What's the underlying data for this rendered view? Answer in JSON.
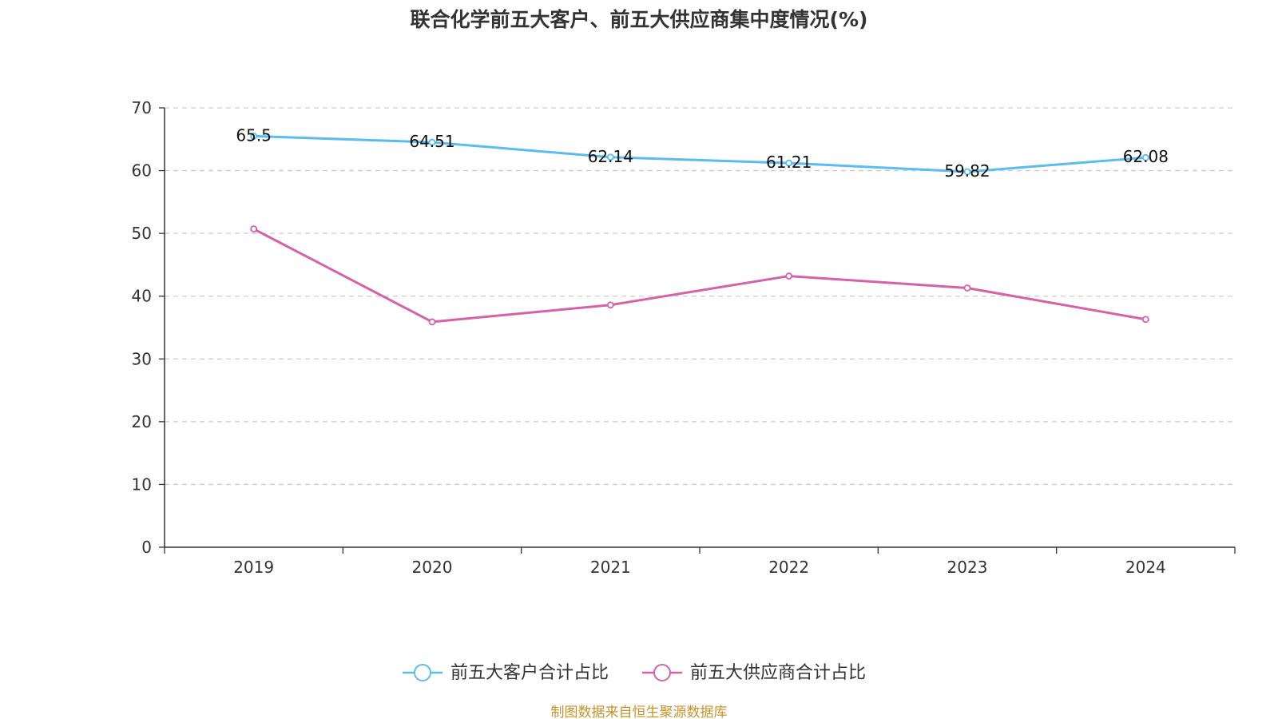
{
  "chart_data": {
    "type": "line",
    "title": "联合化学前五大客户、前五大供应商集中度情况(%)",
    "categories": [
      "2019",
      "2020",
      "2021",
      "2022",
      "2023",
      "2024"
    ],
    "ylim": [
      0,
      70
    ],
    "yticks": [
      0,
      10,
      20,
      30,
      40,
      50,
      60,
      70
    ],
    "grid": true,
    "legend_position": "bottom",
    "series": [
      {
        "name": "前五大客户合计占比",
        "color": "#5bbcef",
        "values": [
          65.5,
          64.51,
          62.14,
          61.21,
          59.82,
          62.08
        ],
        "labels": [
          "65.5",
          "64.51",
          "62.14",
          "61.21",
          "59.82",
          "62.08"
        ]
      },
      {
        "name": "前五大供应商合计占比",
        "color": "#d462a9",
        "values": [
          50.7,
          35.9,
          38.6,
          43.2,
          41.3,
          36.3
        ]
      }
    ]
  },
  "footer": {
    "source": "制图数据来自恒生聚源数据库",
    "source_color": "#c8922a"
  },
  "colors": {
    "axis": "#333333",
    "grid": "#cccccc"
  }
}
